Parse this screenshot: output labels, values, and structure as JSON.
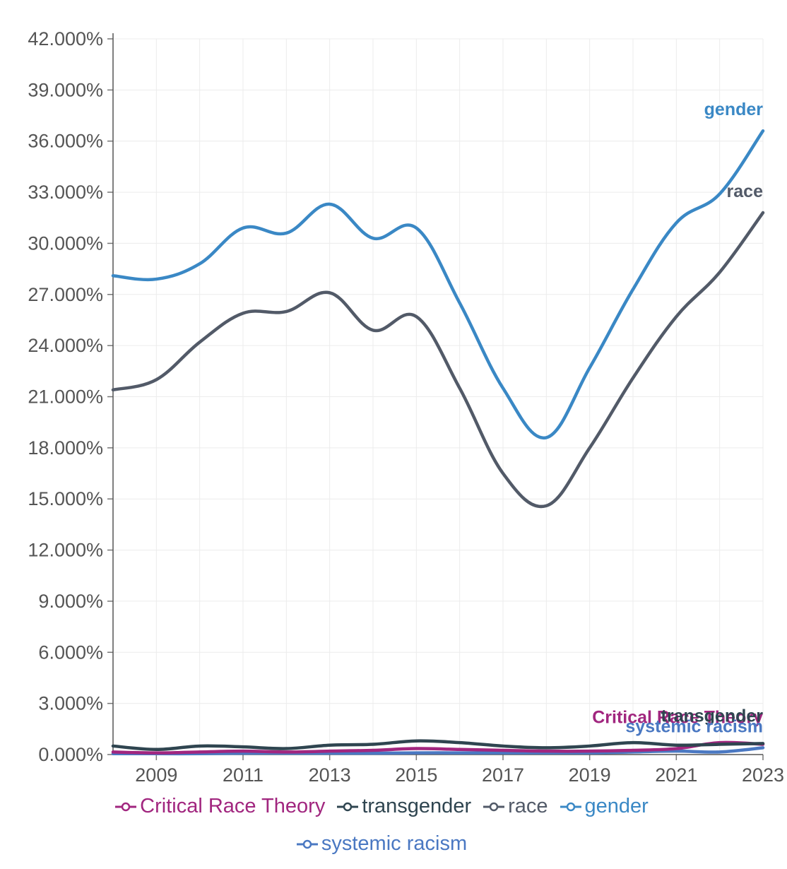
{
  "chart_data": {
    "type": "line",
    "title": "",
    "xlabel": "",
    "ylabel": "",
    "x": [
      2008,
      2009,
      2010,
      2011,
      2012,
      2013,
      2014,
      2015,
      2016,
      2017,
      2018,
      2019,
      2020,
      2021,
      2022,
      2023
    ],
    "x_ticks": [
      "2009",
      "2011",
      "2013",
      "2015",
      "2017",
      "2019",
      "2021",
      "2023"
    ],
    "y_ticks": [
      "42.000%",
      "39.000%",
      "36.000%",
      "33.000%",
      "30.000%",
      "27.000%",
      "24.000%",
      "21.000%",
      "18.000%",
      "15.000%",
      "12.000%",
      "9.000%",
      "6.000%",
      "3.000%",
      "0.000%"
    ],
    "ylim": [
      0,
      42
    ],
    "y_unit": "%",
    "grid": true,
    "legend_position": "bottom",
    "series": [
      {
        "name": "Critical Race Theory",
        "color": "#a1267f",
        "values": [
          0.15,
          0.1,
          0.15,
          0.2,
          0.15,
          0.2,
          0.25,
          0.35,
          0.3,
          0.25,
          0.2,
          0.2,
          0.25,
          0.35,
          0.7,
          0.6
        ]
      },
      {
        "name": "transgender",
        "color": "#2f4550",
        "values": [
          0.5,
          0.3,
          0.5,
          0.45,
          0.35,
          0.55,
          0.6,
          0.8,
          0.7,
          0.5,
          0.4,
          0.5,
          0.7,
          0.55,
          0.6,
          0.65
        ]
      },
      {
        "name": "race",
        "color": "#525a68",
        "values": [
          21.4,
          22.0,
          24.2,
          25.9,
          26.0,
          27.1,
          24.9,
          25.7,
          21.5,
          16.5,
          14.6,
          18.0,
          22.1,
          25.7,
          28.3,
          31.8
        ]
      },
      {
        "name": "gender",
        "color": "#3a88c5",
        "values": [
          28.1,
          27.9,
          28.8,
          30.9,
          30.6,
          32.3,
          30.3,
          30.9,
          26.5,
          21.5,
          18.6,
          22.7,
          27.3,
          31.2,
          32.9,
          36.6
        ]
      },
      {
        "name": "systemic racism",
        "color": "#4a78c2",
        "values": [
          0.05,
          0.05,
          0.05,
          0.08,
          0.08,
          0.08,
          0.08,
          0.1,
          0.1,
          0.1,
          0.1,
          0.1,
          0.15,
          0.2,
          0.15,
          0.4
        ]
      }
    ],
    "end_labels": [
      "gender",
      "race",
      "Critical Race Theory",
      "transgender",
      "systemic racism"
    ]
  }
}
